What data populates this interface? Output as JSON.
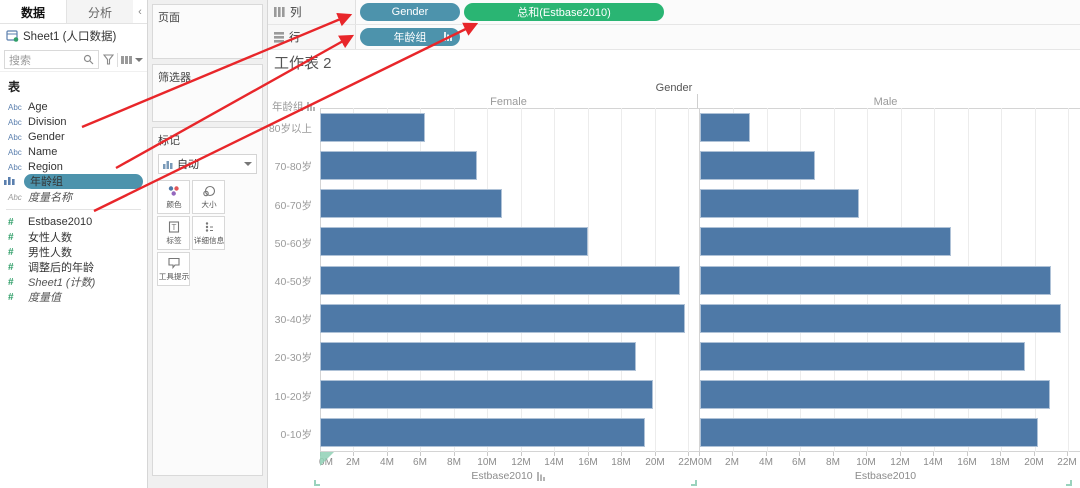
{
  "sidebar": {
    "tabs": [
      {
        "label": "数据"
      },
      {
        "label": "分析"
      }
    ],
    "collapse_glyph": "‹",
    "datasource": "Sheet1 (人口数据)",
    "search": {
      "placeholder": "搜索"
    },
    "tables_header": "表",
    "fields": [
      {
        "label": "Age",
        "icon": "abc",
        "italic": false,
        "selected": false
      },
      {
        "label": "Division",
        "icon": "abc",
        "italic": false,
        "selected": false
      },
      {
        "label": "Gender",
        "icon": "abc",
        "italic": false,
        "selected": false
      },
      {
        "label": "Name",
        "icon": "abc",
        "italic": false,
        "selected": false
      },
      {
        "label": "Region",
        "icon": "abc",
        "italic": false,
        "selected": false
      },
      {
        "label": "年龄组",
        "icon": "bars",
        "italic": false,
        "selected": true
      },
      {
        "label": "度量名称",
        "icon": "abc-gray",
        "italic": true,
        "selected": false
      },
      {
        "label": "Estbase2010",
        "icon": "num",
        "italic": false,
        "selected": false,
        "group_start": true
      },
      {
        "label": "女性人数",
        "icon": "num",
        "italic": false,
        "selected": false
      },
      {
        "label": "男性人数",
        "icon": "num",
        "italic": false,
        "selected": false
      },
      {
        "label": "调整后的年龄",
        "icon": "num",
        "italic": false,
        "selected": false
      },
      {
        "label": "Sheet1 (计数)",
        "icon": "num",
        "italic": true,
        "selected": false
      },
      {
        "label": "度量值",
        "icon": "num",
        "italic": true,
        "selected": false
      }
    ]
  },
  "cards": {
    "pages_label": "页面",
    "filters_label": "筛选器",
    "marks_label": "标记",
    "mark_type": "自动",
    "buttons": {
      "color": "颜色",
      "size": "大小",
      "label": "标签",
      "detail": "详细信息",
      "tooltip": "工具提示"
    }
  },
  "shelves": {
    "columns_label": "列",
    "rows_label": "行",
    "column_pills": [
      {
        "label": "Gender",
        "kind": "dimension"
      },
      {
        "label": "总和(Estbase2010)",
        "kind": "measure"
      }
    ],
    "row_pills": [
      {
        "label": "年龄组",
        "kind": "dimension",
        "sorted": true
      }
    ]
  },
  "chart_data": {
    "type": "bar",
    "title": "工作表 2",
    "column_field_header": "Gender",
    "row_field_header": "年龄组",
    "orientation": "horizontal",
    "categories": [
      "80岁以上",
      "70-80岁",
      "60-70岁",
      "50-60岁",
      "40-50岁",
      "30-40岁",
      "20-30岁",
      "10-20岁",
      "0-10岁"
    ],
    "series": [
      {
        "name": "Female",
        "values_millions": [
          6.3,
          9.4,
          10.9,
          16.0,
          21.5,
          21.8,
          18.9,
          19.9,
          19.4
        ]
      },
      {
        "name": "Male",
        "values_millions": [
          3.0,
          6.9,
          9.5,
          15.0,
          21.0,
          21.6,
          19.4,
          20.9,
          20.2
        ]
      }
    ],
    "x_ticks": [
      "0M",
      "2M",
      "4M",
      "6M",
      "8M",
      "10M",
      "12M",
      "14M",
      "16M",
      "18M",
      "20M",
      "22M"
    ],
    "xlim_millions": [
      0,
      22
    ],
    "xlabels": [
      "Estbase2010",
      "Estbase2010"
    ],
    "grid": true,
    "bar_color": "#4e79a7"
  },
  "colors": {
    "pill_dimension": "#4d93ac",
    "pill_measure": "#2ab573",
    "bar": "#4e79a7",
    "annotation_arrow": "#e8262a",
    "axis_selection": "#8fd0b5"
  }
}
